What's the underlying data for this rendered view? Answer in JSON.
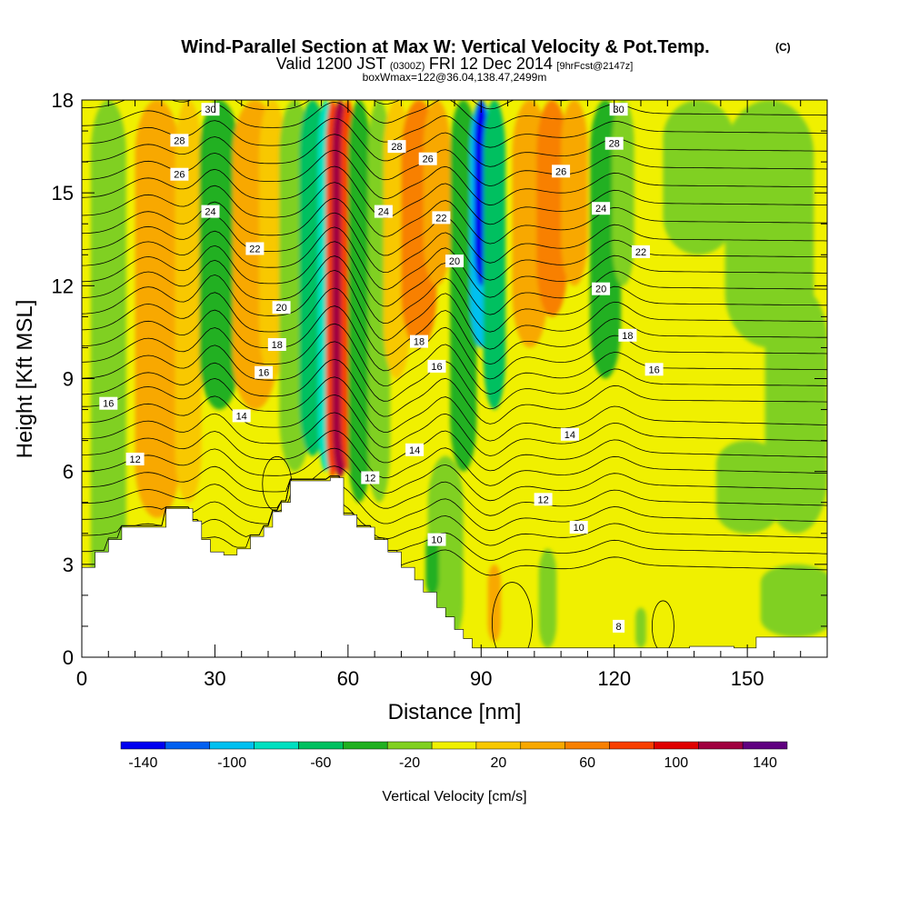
{
  "chart_data": {
    "type": "heatmap",
    "title": "Wind-Parallel Section at Max W: Vertical Velocity & Pot.Temp.",
    "title_mark": "(C)",
    "subtitle_parts": [
      "Valid 1200 JST",
      "(0300Z)",
      "FRI 12 Dec 2014",
      "[9hrFcst@2147z]"
    ],
    "subtitle2": "boxWmax=122@36.04,138.47,2499m",
    "xlabel": "Distance [nm]",
    "ylabel": "Height [Kft MSL]",
    "xlim": [
      0,
      168
    ],
    "ylim": [
      0,
      18
    ],
    "x_ticks": [
      0,
      30,
      60,
      90,
      120,
      150
    ],
    "x_tick_labels": [
      "0",
      "30",
      "60",
      "90",
      "120",
      "150"
    ],
    "y_ticks": [
      0,
      3,
      6,
      9,
      12,
      15,
      18
    ],
    "y_tick_labels": [
      "0",
      "3",
      "6",
      "9",
      "12",
      "15",
      "18"
    ],
    "colorbar": {
      "label": "Vertical Velocity [cm/s]",
      "bounds": [
        -150,
        150
      ],
      "levels": [
        -150,
        -130,
        -110,
        -90,
        -70,
        -50,
        -30,
        -10,
        10,
        30,
        50,
        70,
        90,
        110,
        130,
        150
      ],
      "colors": [
        "#0000f0",
        "#0060f0",
        "#00c0f0",
        "#00e0c0",
        "#00c060",
        "#20b020",
        "#80d020",
        "#f0f000",
        "#f8c800",
        "#f8a800",
        "#f88000",
        "#f84000",
        "#e00000",
        "#a00040",
        "#600080"
      ],
      "tick_values": [
        -140,
        -100,
        -60,
        -20,
        20,
        60,
        100,
        140
      ],
      "tick_labels": [
        "-140",
        "-100",
        "-60",
        "-20",
        "20",
        "60",
        "100",
        "140"
      ]
    },
    "contour_field": "Potential Temperature",
    "contour_labels": [
      {
        "text": "30",
        "x": 29,
        "y": 17.7
      },
      {
        "text": "28",
        "x": 22,
        "y": 16.7
      },
      {
        "text": "26",
        "x": 22,
        "y": 15.6
      },
      {
        "text": "24",
        "x": 29,
        "y": 14.4
      },
      {
        "text": "22",
        "x": 39,
        "y": 13.2
      },
      {
        "text": "20",
        "x": 45,
        "y": 11.3
      },
      {
        "text": "18",
        "x": 44,
        "y": 10.1
      },
      {
        "text": "16",
        "x": 41,
        "y": 9.2
      },
      {
        "text": "14",
        "x": 36,
        "y": 7.8
      },
      {
        "text": "12",
        "x": 12,
        "y": 6.4
      },
      {
        "text": "16",
        "x": 6,
        "y": 8.2
      },
      {
        "text": "28",
        "x": 71,
        "y": 16.5
      },
      {
        "text": "26",
        "x": 78,
        "y": 16.1
      },
      {
        "text": "24",
        "x": 68,
        "y": 14.4
      },
      {
        "text": "22",
        "x": 81,
        "y": 14.2
      },
      {
        "text": "20",
        "x": 84,
        "y": 12.8
      },
      {
        "text": "18",
        "x": 76,
        "y": 10.2
      },
      {
        "text": "16",
        "x": 80,
        "y": 9.4
      },
      {
        "text": "14",
        "x": 75,
        "y": 6.7
      },
      {
        "text": "12",
        "x": 65,
        "y": 5.8
      },
      {
        "text": "10",
        "x": 80,
        "y": 3.8
      },
      {
        "text": "30",
        "x": 121,
        "y": 17.7
      },
      {
        "text": "28",
        "x": 120,
        "y": 16.6
      },
      {
        "text": "26",
        "x": 108,
        "y": 15.7
      },
      {
        "text": "24",
        "x": 117,
        "y": 14.5
      },
      {
        "text": "22",
        "x": 126,
        "y": 13.1
      },
      {
        "text": "20",
        "x": 117,
        "y": 11.9
      },
      {
        "text": "18",
        "x": 123,
        "y": 10.4
      },
      {
        "text": "16",
        "x": 129,
        "y": 9.3
      },
      {
        "text": "14",
        "x": 110,
        "y": 7.2
      },
      {
        "text": "12",
        "x": 104,
        "y": 5.1
      },
      {
        "text": "10",
        "x": 112,
        "y": 4.2
      },
      {
        "text": "8",
        "x": 121,
        "y": 1.0
      }
    ]
  }
}
